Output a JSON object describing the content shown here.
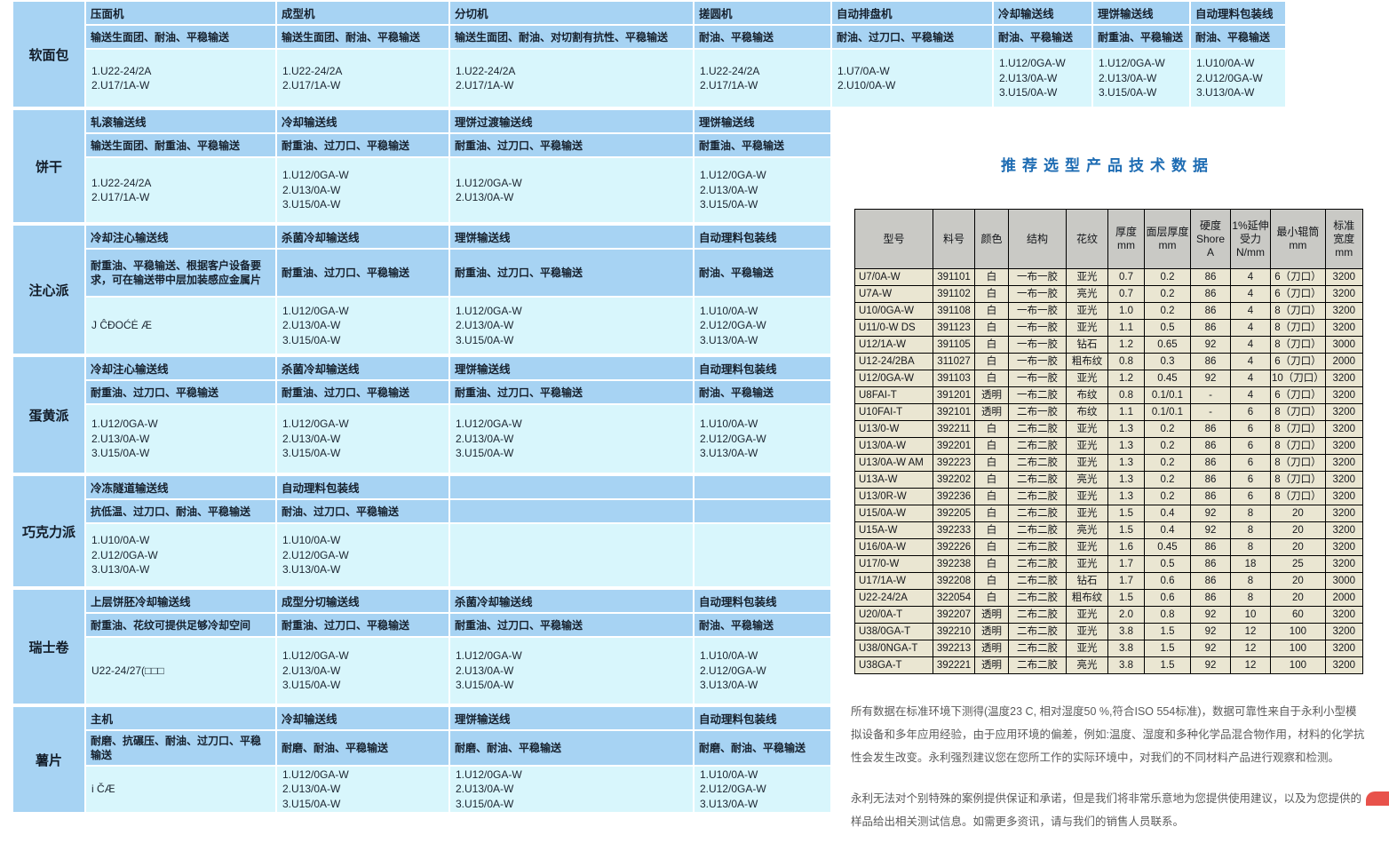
{
  "left_table": {
    "rows": [
      {
        "category": "软面包",
        "cells": [
          {
            "machine": "压面机",
            "features": "输送生面团、耐油、平稳输送",
            "items": [
              "1.U22-24/2A",
              "2.U17/1A-W"
            ]
          },
          {
            "machine": "成型机",
            "features": "输送生面团、耐油、平稳输送",
            "items": [
              "1.U22-24/2A",
              "2.U17/1A-W"
            ]
          },
          {
            "machine": "分切机",
            "features": "输送生面团、耐油、对切割有抗性、平稳输送",
            "items": [
              "1.U22-24/2A",
              "2.U17/1A-W"
            ]
          },
          {
            "machine": "搓圆机",
            "features": "耐油、平稳输送",
            "items": [
              "1.U22-24/2A",
              "2.U17/1A-W"
            ]
          },
          {
            "machine": "自动排盘机",
            "features": "耐油、过刀口、平稳输送",
            "items": [
              "1.U7/0A-W",
              "2.U10/0A-W"
            ]
          },
          {
            "machine": "冷却输送线",
            "features": "耐油、平稳输送",
            "items": [
              "1.U12/0GA-W",
              "2.U13/0A-W",
              "3.U15/0A-W"
            ]
          },
          {
            "machine": "理饼输送线",
            "features": "耐重油、平稳输送",
            "items": [
              "1.U12/0GA-W",
              "2.U13/0A-W",
              "3.U15/0A-W"
            ]
          },
          {
            "machine": "自动理料包装线",
            "features": "耐油、平稳输送",
            "items": [
              "1.U10/0A-W",
              "2.U12/0GA-W",
              "3.U13/0A-W"
            ]
          }
        ]
      },
      {
        "category": "饼干",
        "cells": [
          {
            "machine": "轧滚输送线",
            "features": "输送生面团、耐重油、平稳输送",
            "items": [
              "1.U22-24/2A",
              "2.U17/1A-W"
            ]
          },
          {
            "machine": "冷却输送线",
            "features": "耐重油、过刀口、平稳输送",
            "items": [
              "1.U12/0GA-W",
              "2.U13/0A-W",
              "3.U15/0A-W"
            ]
          },
          {
            "machine": "理饼过渡输送线",
            "features": "耐重油、过刀口、平稳输送",
            "items": [
              "1.U12/0GA-W",
              "2.U13/0A-W"
            ]
          },
          {
            "machine": "理饼输送线",
            "features": "耐重油、平稳输送",
            "items": [
              "1.U12/0GA-W",
              "2.U13/0A-W",
              "3.U15/0A-W"
            ]
          }
        ]
      },
      {
        "category": "注心派",
        "cells": [
          {
            "machine": "冷却注心输送线",
            "features": "耐重油、平稳输送、根据客户设备要求，可在输送带中层加装感应金属片",
            "items": [
              "J ĈĐOĆĖ Æ"
            ]
          },
          {
            "machine": "杀菌冷却输送线",
            "features": "耐重油、过刀口、平稳输送",
            "items": [
              "1.U12/0GA-W",
              "2.U13/0A-W",
              "3.U15/0A-W"
            ]
          },
          {
            "machine": "理饼输送线",
            "features": "耐重油、过刀口、平稳输送",
            "items": [
              "1.U12/0GA-W",
              "2.U13/0A-W",
              "3.U15/0A-W"
            ]
          },
          {
            "machine": "自动理料包装线",
            "features": "耐油、平稳输送",
            "items": [
              "1.U10/0A-W",
              "2.U12/0GA-W",
              "3.U13/0A-W"
            ]
          }
        ]
      },
      {
        "category": "蛋黄派",
        "cells": [
          {
            "machine": "冷却注心输送线",
            "features": "耐重油、过刀口、平稳输送",
            "items": [
              "1.U12/0GA-W",
              "2.U13/0A-W",
              "3.U15/0A-W"
            ]
          },
          {
            "machine": "杀菌冷却输送线",
            "features": "耐重油、过刀口、平稳输送",
            "items": [
              "1.U12/0GA-W",
              "2.U13/0A-W",
              "3.U15/0A-W"
            ]
          },
          {
            "machine": "理饼输送线",
            "features": "耐重油、过刀口、平稳输送",
            "items": [
              "1.U12/0GA-W",
              "2.U13/0A-W",
              "3.U15/0A-W"
            ]
          },
          {
            "machine": "自动理料包装线",
            "features": "耐油、平稳输送",
            "items": [
              "1.U10/0A-W",
              "2.U12/0GA-W",
              "3.U13/0A-W"
            ]
          }
        ]
      },
      {
        "category": "巧克力派",
        "cells": [
          {
            "machine": "冷冻隧道输送线",
            "features": "抗低温、过刀口、耐油、平稳输送",
            "items": [
              "1.U10/0A-W",
              "2.U12/0GA-W",
              "3.U13/0A-W"
            ]
          },
          {
            "machine": "自动理料包装线",
            "features": "耐油、过刀口、平稳输送",
            "items": [
              "1.U10/0A-W",
              "2.U12/0GA-W",
              "3.U13/0A-W"
            ]
          },
          {
            "machine": "",
            "features": "",
            "items": []
          },
          {
            "machine": "",
            "features": "",
            "items": []
          }
        ]
      },
      {
        "category": "瑞士卷",
        "cells": [
          {
            "machine": "上层饼胚冷却输送线",
            "features": "耐重油、花纹可提供足够冷却空间",
            "items": [
              "U22-24/27(□□□"
            ]
          },
          {
            "machine": "成型分切输送线",
            "features": "耐重油、过刀口、平稳输送",
            "items": [
              "1.U12/0GA-W",
              "2.U13/0A-W",
              "3.U15/0A-W"
            ]
          },
          {
            "machine": "杀菌冷却输送线",
            "features": "耐重油、过刀口、平稳输送",
            "items": [
              "1.U12/0GA-W",
              "2.U13/0A-W",
              "3.U15/0A-W"
            ]
          },
          {
            "machine": "自动理料包装线",
            "features": "耐油、平稳输送",
            "items": [
              "1.U10/0A-W",
              "2.U12/0GA-W",
              "3.U13/0A-W"
            ]
          }
        ]
      },
      {
        "category": "薯片",
        "cells": [
          {
            "machine": "主机",
            "features": "耐磨、抗碾压、耐油、过刀口、平稳输送",
            "items": [
              "i ČÆ"
            ]
          },
          {
            "machine": "冷却输送线",
            "features": "耐磨、耐油、平稳输送",
            "items": [
              "1.U12/0GA-W",
              "2.U13/0A-W",
              "3.U15/0A-W"
            ]
          },
          {
            "machine": "理饼输送线",
            "features": "耐磨、耐油、平稳输送",
            "items": [
              "1.U12/0GA-W",
              "2.U13/0A-W",
              "3.U15/0A-W"
            ]
          },
          {
            "machine": "自动理料包装线",
            "features": "耐磨、耐油、平稳输送",
            "items": [
              "1.U10/0A-W",
              "2.U12/0GA-W",
              "3.U13/0A-W"
            ]
          }
        ]
      }
    ]
  },
  "tech_table": {
    "title": "推荐选型产品技术数据",
    "headers": [
      "型号",
      "料号",
      "颜色",
      "结构",
      "花纹",
      "厚度\nmm",
      "面层厚度\nmm",
      "硬度\nShore\nA",
      "1%延伸\n受力\nN/mm",
      "最小辊筒\nmm",
      "标准\n宽度\nmm"
    ],
    "rows": [
      [
        "U7/0A-W",
        "391101",
        "白",
        "一布一胶",
        "亚光",
        "0.7",
        "0.2",
        "86",
        "4",
        "6（刀口）",
        "3200"
      ],
      [
        "U7A-W",
        "391102",
        "白",
        "一布一胶",
        "亮光",
        "0.7",
        "0.2",
        "86",
        "4",
        "6（刀口）",
        "3200"
      ],
      [
        "U10/0GA-W",
        "391108",
        "白",
        "一布一胶",
        "亚光",
        "1.0",
        "0.2",
        "86",
        "4",
        "8（刀口）",
        "3200"
      ],
      [
        "U11/0-W DS",
        "391123",
        "白",
        "一布一胶",
        "亚光",
        "1.1",
        "0.5",
        "86",
        "4",
        "8（刀口）",
        "3200"
      ],
      [
        "U12/1A-W",
        "391105",
        "白",
        "一布一胶",
        "钻石",
        "1.2",
        "0.65",
        "92",
        "4",
        "8（刀口）",
        "3000"
      ],
      [
        "U12-24/2BA",
        "311027",
        "白",
        "一布一胶",
        "粗布纹",
        "0.8",
        "0.3",
        "86",
        "4",
        "6（刀口）",
        "2000"
      ],
      [
        "U12/0GA-W",
        "391103",
        "白",
        "一布一胶",
        "亚光",
        "1.2",
        "0.45",
        "92",
        "4",
        "10（刀口）",
        "3200"
      ],
      [
        "U8FAI-T",
        "391201",
        "透明",
        "一布二胶",
        "布纹",
        "0.8",
        "0.1/0.1",
        "-",
        "4",
        "6（刀口）",
        "3200"
      ],
      [
        "U10FAI-T",
        "392101",
        "透明",
        "二布一胶",
        "布纹",
        "1.1",
        "0.1/0.1",
        "-",
        "6",
        "8（刀口）",
        "3200"
      ],
      [
        "U13/0-W",
        "392211",
        "白",
        "二布二胶",
        "亚光",
        "1.3",
        "0.2",
        "86",
        "6",
        "8（刀口）",
        "3200"
      ],
      [
        "U13/0A-W",
        "392201",
        "白",
        "二布二胶",
        "亚光",
        "1.3",
        "0.2",
        "86",
        "6",
        "8（刀口）",
        "3200"
      ],
      [
        "U13/0A-W AM",
        "392223",
        "白",
        "二布二胶",
        "亚光",
        "1.3",
        "0.2",
        "86",
        "6",
        "8（刀口）",
        "3200"
      ],
      [
        "U13A-W",
        "392202",
        "白",
        "二布二胶",
        "亮光",
        "1.3",
        "0.2",
        "86",
        "6",
        "8（刀口）",
        "3200"
      ],
      [
        "U13/0R-W",
        "392236",
        "白",
        "二布二胶",
        "亚光",
        "1.3",
        "0.2",
        "86",
        "6",
        "8（刀口）",
        "3200"
      ],
      [
        "U15/0A-W",
        "392205",
        "白",
        "二布二胶",
        "亚光",
        "1.5",
        "0.4",
        "92",
        "8",
        "20",
        "3200"
      ],
      [
        "U15A-W",
        "392233",
        "白",
        "二布二胶",
        "亮光",
        "1.5",
        "0.4",
        "92",
        "8",
        "20",
        "3200"
      ],
      [
        "U16/0A-W",
        "392226",
        "白",
        "二布二胶",
        "亚光",
        "1.6",
        "0.45",
        "86",
        "8",
        "20",
        "3200"
      ],
      [
        "U17/0-W",
        "392238",
        "白",
        "二布二胶",
        "亚光",
        "1.7",
        "0.5",
        "86",
        "18",
        "25",
        "3200"
      ],
      [
        "U17/1A-W",
        "392208",
        "白",
        "二布二胶",
        "钻石",
        "1.7",
        "0.6",
        "86",
        "8",
        "20",
        "3000"
      ],
      [
        "U22-24/2A",
        "322054",
        "白",
        "二布二胶",
        "粗布纹",
        "1.5",
        "0.6",
        "86",
        "8",
        "20",
        "2000"
      ],
      [
        "U20/0A-T",
        "392207",
        "透明",
        "二布二胶",
        "亚光",
        "2.0",
        "0.8",
        "92",
        "10",
        "60",
        "3200"
      ],
      [
        "U38/0GA-T",
        "392210",
        "透明",
        "二布二胶",
        "亚光",
        "3.8",
        "1.5",
        "92",
        "12",
        "100",
        "3200"
      ],
      [
        "U38/0NGA-T",
        "392213",
        "透明",
        "二布二胶",
        "亚光",
        "3.8",
        "1.5",
        "92",
        "12",
        "100",
        "3200"
      ],
      [
        "U38GA-T",
        "392221",
        "透明",
        "二布二胶",
        "亮光",
        "3.8",
        "1.5",
        "92",
        "12",
        "100",
        "3200"
      ]
    ]
  },
  "notes": {
    "p1": "所有数据在标准环境下测得(温度23 C, 相对湿度50 %,符合ISO 554标准)，数据可靠性来自于永利小型模拟设备和多年应用经验，由于应用环境的偏差，例如:温度、湿度和多种化学品混合物作用，材料的化学抗性会发生改变。永利强烈建议您在您所工作的实际环境中，对我们的不同材料产品进行观察和检测。",
    "p2": "永利无法对个别特殊的案例提供保证和承诺，但是我们将非常乐意地为您提供使用建议，以及为您提供的样品给出相关测试信息。如需更多资讯，请与我们的销售人员联系。"
  }
}
